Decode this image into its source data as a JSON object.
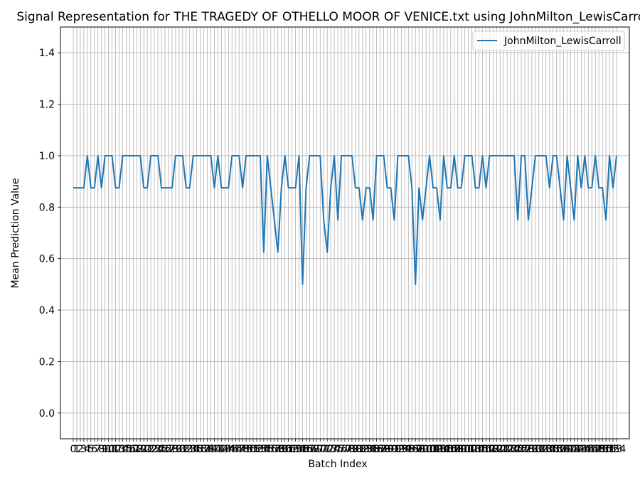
{
  "chart_data": {
    "type": "line",
    "title": "Signal Representation for THE TRAGEDY OF OTHELLO MOOR OF VENICE.txt using JohnMilton_LewisCarroll",
    "xlabel": "Batch Index",
    "ylabel": "Mean Prediction Value",
    "xlim": [
      0,
      153
    ],
    "ylim": [
      -0.1,
      1.5
    ],
    "yticks": [
      0.0,
      0.2,
      0.4,
      0.6,
      0.8,
      1.0,
      1.2,
      1.4
    ],
    "grid": true,
    "legend_position": "top-right",
    "colors": {
      "series": "#1f77b4",
      "grid": "#b0b0b0"
    },
    "series": [
      {
        "name": "JohnMilton_LewisCarroll",
        "values": [
          0.875,
          0.875,
          0.875,
          0.875,
          1.0,
          0.875,
          0.875,
          1.0,
          0.875,
          1.0,
          1.0,
          1.0,
          0.875,
          0.875,
          1.0,
          1.0,
          1.0,
          1.0,
          1.0,
          1.0,
          0.875,
          0.875,
          1.0,
          1.0,
          1.0,
          0.875,
          0.875,
          0.875,
          0.875,
          1.0,
          1.0,
          1.0,
          0.875,
          0.875,
          1.0,
          1.0,
          1.0,
          1.0,
          1.0,
          1.0,
          0.875,
          1.0,
          0.875,
          0.875,
          0.875,
          1.0,
          1.0,
          1.0,
          0.875,
          1.0,
          1.0,
          1.0,
          1.0,
          1.0,
          0.625,
          1.0,
          0.875,
          0.75,
          0.625,
          0.875,
          1.0,
          0.875,
          0.875,
          0.875,
          1.0,
          0.5,
          0.875,
          1.0,
          1.0,
          1.0,
          1.0,
          0.75,
          0.625,
          0.875,
          1.0,
          0.75,
          1.0,
          1.0,
          1.0,
          1.0,
          0.875,
          0.875,
          0.75,
          0.875,
          0.875,
          0.75,
          1.0,
          1.0,
          1.0,
          0.875,
          0.875,
          0.75,
          1.0,
          1.0,
          1.0,
          1.0,
          0.875,
          0.5,
          0.875,
          0.75,
          0.875,
          1.0,
          0.875,
          0.875,
          0.75,
          1.0,
          0.875,
          0.875,
          1.0,
          0.875,
          0.875,
          1.0,
          1.0,
          1.0,
          0.875,
          0.875,
          1.0,
          0.875,
          1.0,
          1.0,
          1.0,
          1.0,
          1.0,
          1.0,
          1.0,
          1.0,
          0.75,
          1.0,
          1.0,
          0.75,
          0.875,
          1.0,
          1.0,
          1.0,
          1.0,
          0.875,
          1.0,
          1.0,
          0.875,
          0.75,
          1.0,
          0.875,
          0.75,
          1.0,
          0.875,
          1.0,
          0.875,
          0.875,
          1.0,
          0.875,
          0.875,
          0.75,
          1.0,
          0.875,
          1.0
        ]
      }
    ]
  }
}
